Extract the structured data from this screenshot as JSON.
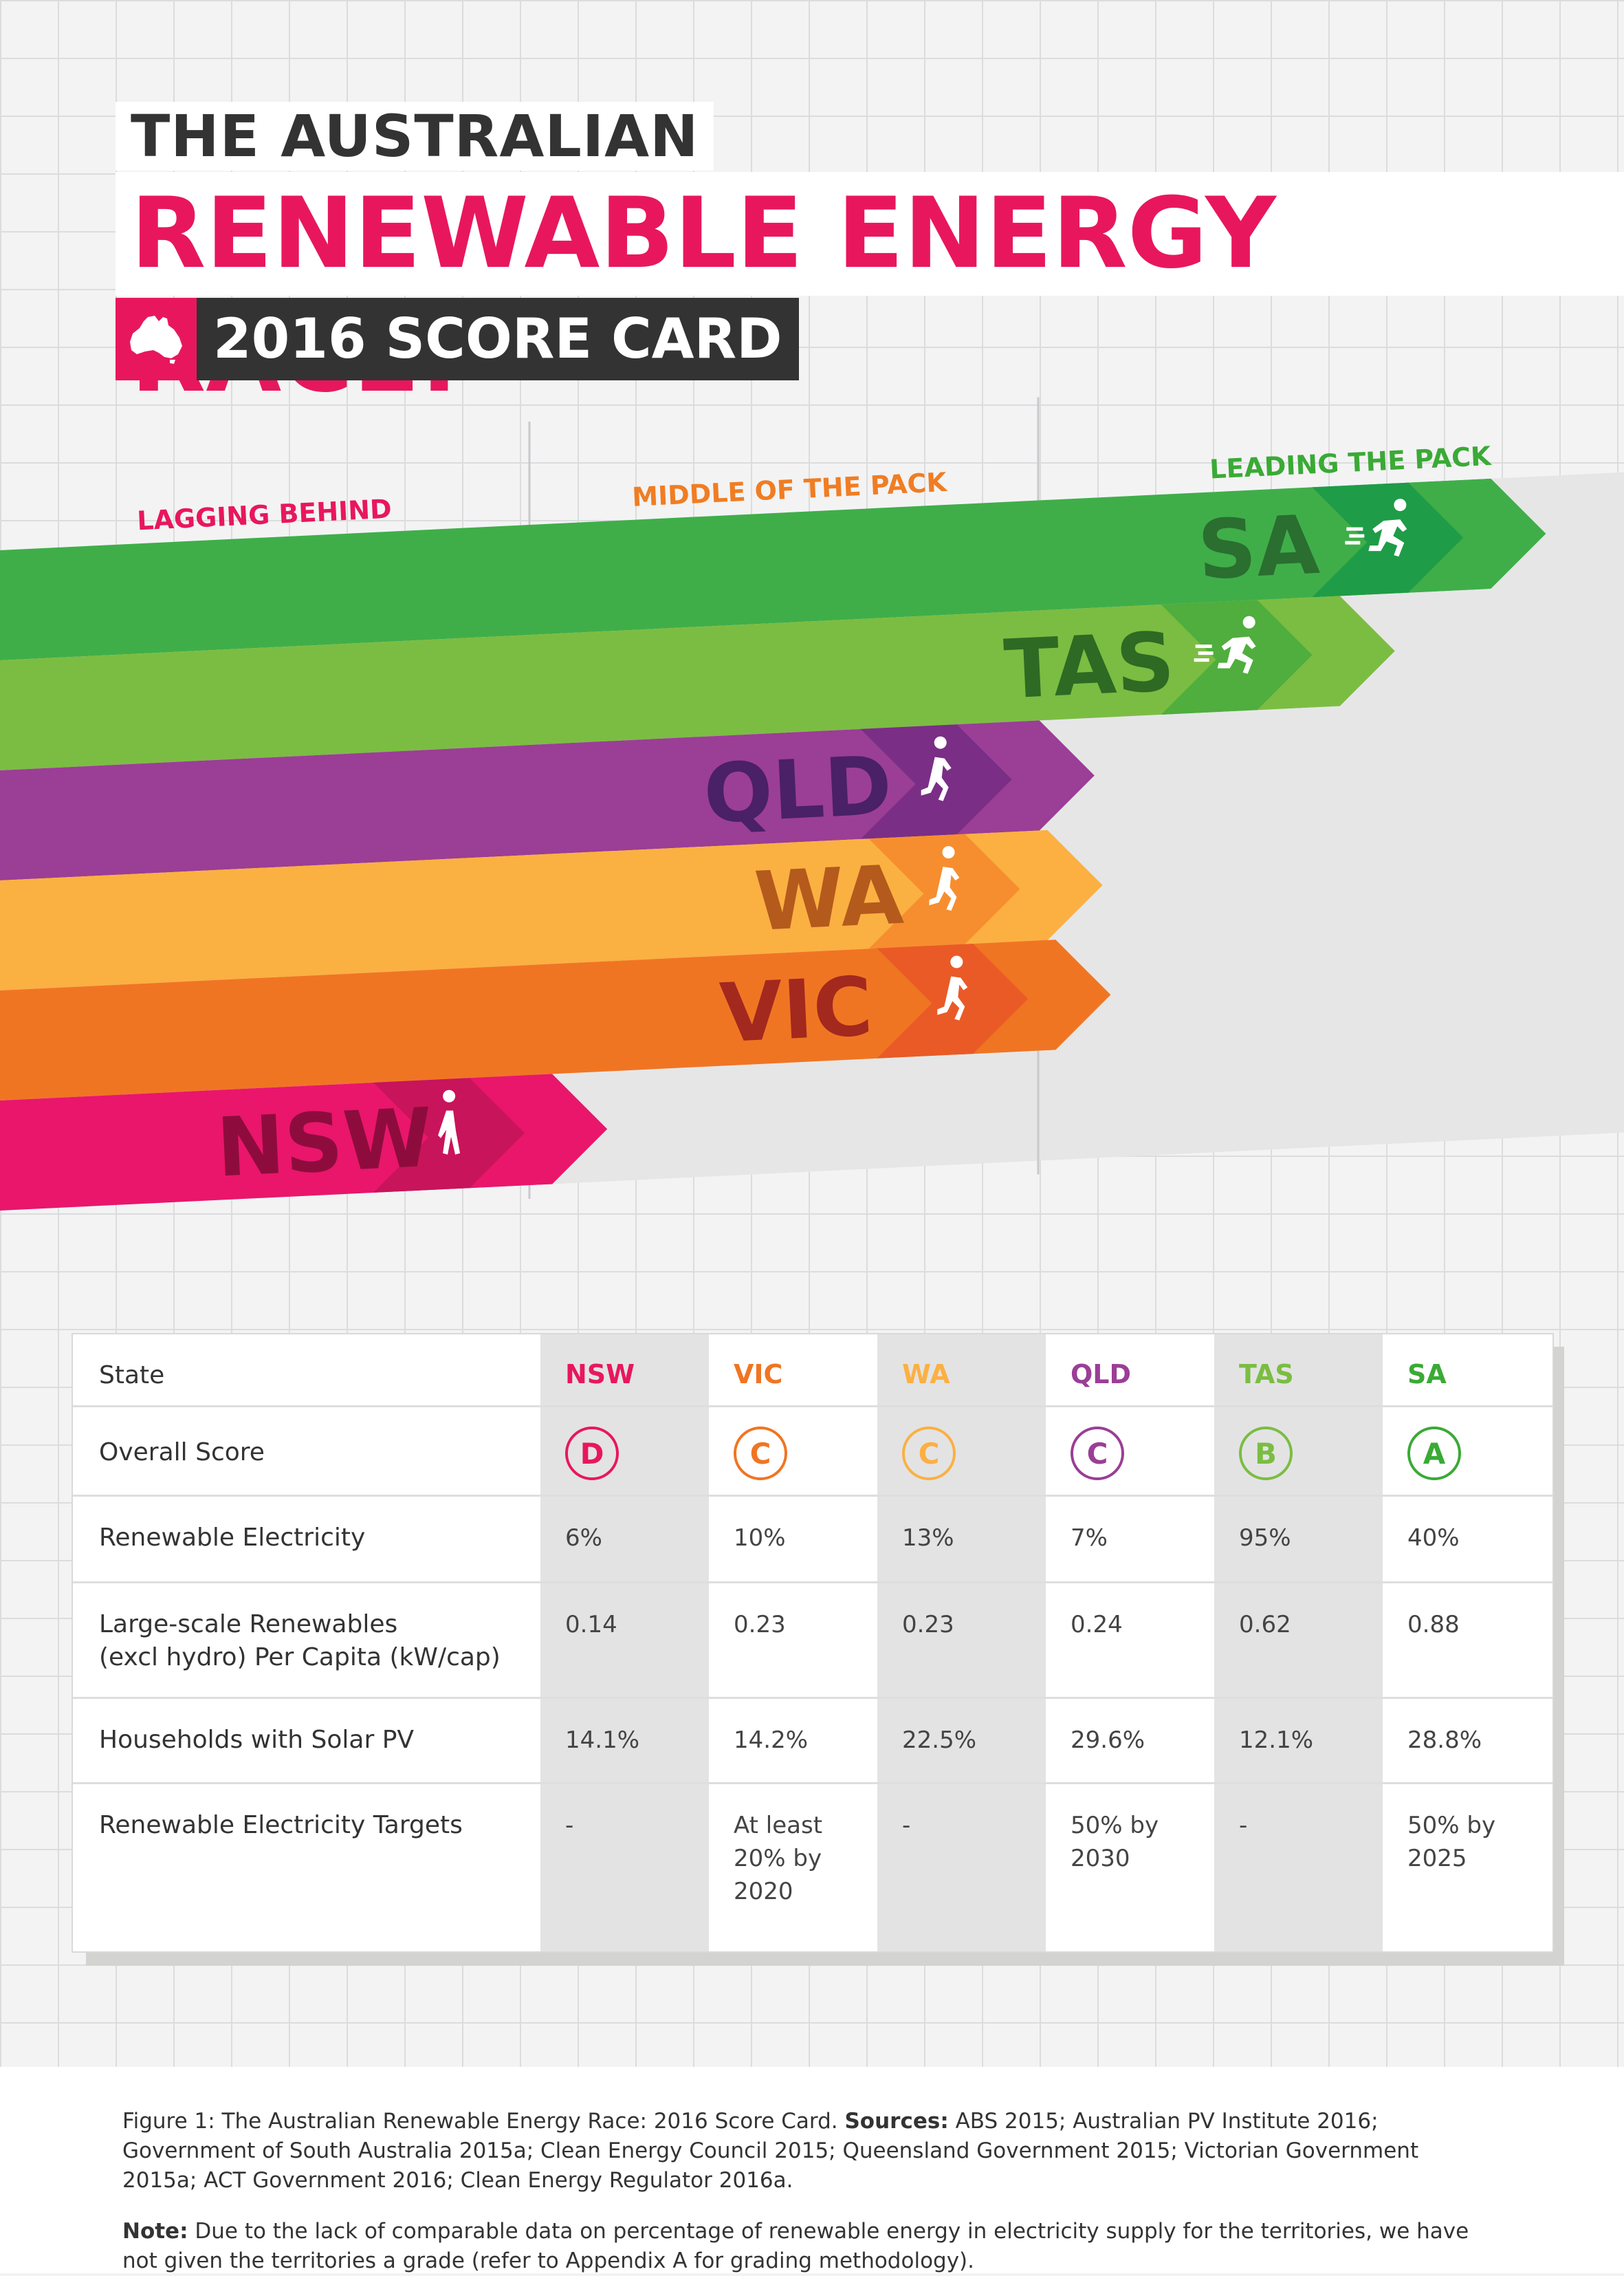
{
  "header": {
    "line1": "THE AUSTRALIAN",
    "line2": "RENEWABLE ENERGY RACE:",
    "line3": "2016 SCORE CARD"
  },
  "race": {
    "zones": [
      "LAGGING BEHIND",
      "MIDDLE OF THE PACK",
      "LEADING THE PACK"
    ],
    "zone_colors": [
      "#e8175d",
      "#f07d23",
      "#3aaa35"
    ],
    "lanes": [
      {
        "state": "SA",
        "progress": 0.918,
        "color": "#3fae49",
        "dark": "#1f9c47",
        "text": "#2a6e30",
        "runner": "sprint"
      },
      {
        "state": "TAS",
        "progress": 0.825,
        "color": "#7bbd42",
        "dark": "#4fae3d",
        "text": "#2e6a23",
        "runner": "sprint"
      },
      {
        "state": "QLD",
        "progress": 0.64,
        "color": "#9b3e96",
        "dark": "#7a2e86",
        "text": "#4a2066",
        "runner": "run"
      },
      {
        "state": "WA",
        "progress": 0.645,
        "color": "#fbb042",
        "dark": "#f68e2f",
        "text": "#b45a1c",
        "runner": "run"
      },
      {
        "state": "VIC",
        "progress": 0.65,
        "color": "#f07523",
        "dark": "#ea5a26",
        "text": "#a3281e",
        "runner": "run"
      },
      {
        "state": "NSW",
        "progress": 0.34,
        "color": "#e9166b",
        "dark": "#c8145a",
        "text": "#8e0c3d",
        "runner": "walk"
      }
    ]
  },
  "table": {
    "states": [
      {
        "name": "NSW",
        "color": "#e8175d"
      },
      {
        "name": "VIC",
        "color": "#f07523"
      },
      {
        "name": "WA",
        "color": "#fbb042"
      },
      {
        "name": "QLD",
        "color": "#9b3e96"
      },
      {
        "name": "TAS",
        "color": "#7bbd42"
      },
      {
        "name": "SA",
        "color": "#3aaa35"
      }
    ],
    "row_labels": {
      "state": "State",
      "score": "Overall Score",
      "renewable": "Renewable Electricity",
      "largescale": "Large-scale Renewables\n(excl hydro) Per Capita (kW/cap)",
      "solar": "Households with Solar PV",
      "targets": "Renewable Electricity Targets"
    },
    "grades": [
      "D",
      "C",
      "C",
      "C",
      "B",
      "A"
    ],
    "renewable": [
      "6%",
      "10%",
      "13%",
      "7%",
      "95%",
      "40%"
    ],
    "largescale": [
      "0.14",
      "0.23",
      "0.23",
      "0.24",
      "0.62",
      "0.88"
    ],
    "solar": [
      "14.1%",
      "14.2%",
      "22.5%",
      "29.6%",
      "12.1%",
      "28.8%"
    ],
    "targets": [
      "-",
      "At least\n20% by\n2020",
      "-",
      "50% by\n2030",
      "-",
      "50% by\n2025"
    ]
  },
  "footer": {
    "fig_label": "Figure 1:",
    "fig_text": " The Australian Renewable Energy Race: 2016 Score Card. ",
    "sources_label": "Sources:",
    "sources_text": " ABS 2015; Australian PV Institute 2016; Government of South Australia 2015a; Clean Energy Council 2015; Queensland Government 2015; Victorian Government 2015a; ACT Government 2016; Clean Energy Regulator 2016a.",
    "note_label": "Note:",
    "note_text": " Due to the lack of comparable data on percentage of renewable energy in electricity supply for the territories, we have not given the territories a grade (refer to Appendix A for grading methodology)."
  }
}
